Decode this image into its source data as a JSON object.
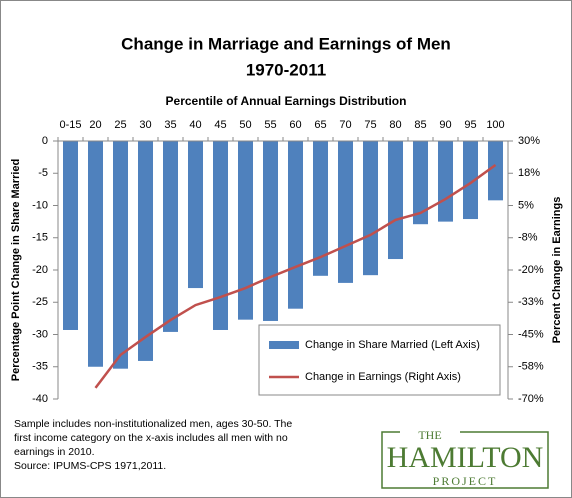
{
  "chart_data": {
    "type": "bar_line",
    "title": "Change in Marriage and Earnings of Men",
    "subtitle": "1970-2011",
    "x_label": "Percentile of Annual Earnings Distribution",
    "y_label": "Percentage Point Change in Share Married",
    "y2_label": "Percent Change in Earnings",
    "categories": [
      "0-15",
      "20",
      "25",
      "30",
      "35",
      "40",
      "45",
      "50",
      "55",
      "60",
      "65",
      "70",
      "75",
      "80",
      "85",
      "90",
      "95",
      "100"
    ],
    "series": [
      {
        "name": "Change in Share Married (Left Axis)",
        "type": "bar",
        "color": "#4f81bd",
        "values": [
          -29.3,
          -35,
          -35.3,
          -34.1,
          -29.6,
          -22.8,
          -29.3,
          -27.7,
          -27.9,
          -26,
          -20.9,
          -22,
          -20.8,
          -18.3,
          -12.9,
          -12.5,
          -12.1,
          -9.2
        ]
      },
      {
        "name": "Change in Earnings (Right Axis)",
        "type": "line",
        "axis": "y2",
        "color": "#c0504d",
        "values": [
          null,
          -65.7,
          -52.9,
          -46,
          -39.4,
          -33.6,
          -30.5,
          -27,
          -22.7,
          -18.8,
          -15,
          -10.7,
          -6.4,
          -0.6,
          2.1,
          7.5,
          13.7,
          20.7
        ]
      }
    ],
    "ylim": [
      -40,
      0
    ],
    "yticks": [
      0,
      -5,
      -10,
      -15,
      -20,
      -25,
      -30,
      -35,
      -40
    ],
    "y2lim": [
      -70,
      30
    ],
    "y2ticks": [
      {
        "value": 30,
        "label": "30%"
      },
      {
        "value": 17.5,
        "label": "18%"
      },
      {
        "value": 5,
        "label": "5%"
      },
      {
        "value": -7.5,
        "label": "-8%"
      },
      {
        "value": -20,
        "label": "-20%"
      },
      {
        "value": -32.5,
        "label": "-33%"
      },
      {
        "value": -45,
        "label": "-45%"
      },
      {
        "value": -57.5,
        "label": "-58%"
      },
      {
        "value": -70,
        "label": "-70%"
      }
    ],
    "legend": "lower right",
    "notes": [
      "Sample includes non-institutionalized  men, ages 30-50. The",
      "first income category on the x-axis includes all men with no",
      "earnings in 2010.",
      "Source: IPUMS-CPS 1971,2011."
    ]
  },
  "logo": {
    "top": "THE",
    "main": "HAMILTON",
    "bottom": "PROJECT"
  }
}
